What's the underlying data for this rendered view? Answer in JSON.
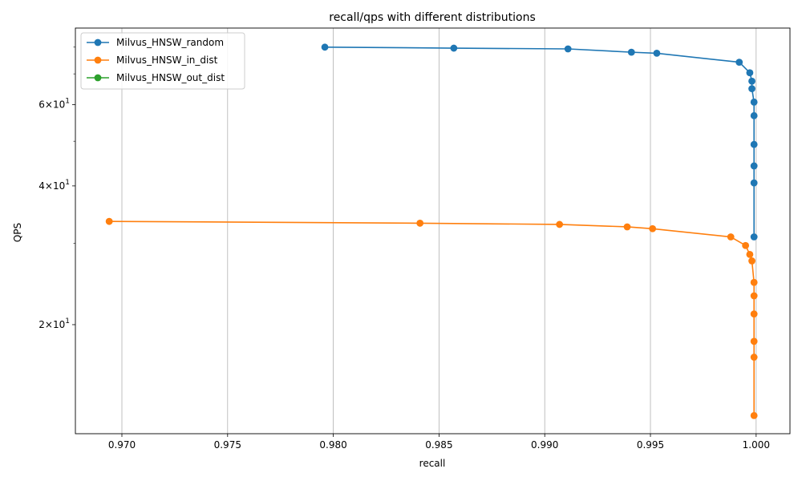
{
  "chart_data": {
    "type": "line",
    "title": "recall/qps with different distributions",
    "xlabel": "recall",
    "ylabel": "QPS",
    "xlim": [
      0.9678,
      1.0016
    ],
    "ylim": [
      11.6,
      88.0
    ],
    "yscale": "log",
    "grid": "x-only",
    "legend_position": "top-left",
    "x_ticks": [
      {
        "value": 0.97,
        "label": "0.970"
      },
      {
        "value": 0.975,
        "label": "0.975"
      },
      {
        "value": 0.98,
        "label": "0.980"
      },
      {
        "value": 0.985,
        "label": "0.985"
      },
      {
        "value": 0.99,
        "label": "0.990"
      },
      {
        "value": 0.995,
        "label": "0.995"
      },
      {
        "value": 1.0,
        "label": "1.000"
      }
    ],
    "y_ticks": [
      {
        "value": 20,
        "base": "2",
        "exp": "10",
        "power": "1"
      },
      {
        "value": 40,
        "base": "4",
        "exp": "10",
        "power": "1"
      },
      {
        "value": 60,
        "base": "6",
        "exp": "10",
        "power": "1"
      }
    ],
    "y_minor_ticks": [
      30,
      50,
      70,
      80
    ],
    "series": [
      {
        "name": "Milvus_HNSW_random",
        "color": "#1f77b4",
        "x": [
          0.9796,
          0.9857,
          0.9911,
          0.9941,
          0.9953,
          0.9992,
          0.9997,
          0.9998,
          0.9998,
          0.9999,
          0.9999,
          0.9999,
          0.9999,
          0.9999,
          0.9999
        ],
        "y": [
          80.0,
          79.6,
          79.3,
          78.0,
          77.6,
          74.2,
          70.4,
          67.5,
          65.0,
          60.8,
          56.8,
          49.2,
          44.2,
          40.6,
          31.0
        ]
      },
      {
        "name": "Milvus_HNSW_in_dist",
        "color": "#ff7f0e",
        "x": [
          0.9694,
          0.9841,
          0.9907,
          0.9939,
          0.9951,
          0.9988,
          0.9995,
          0.9997,
          0.9998,
          0.9999,
          0.9999,
          0.9999,
          0.9999,
          0.9999,
          0.9999
        ],
        "y": [
          33.5,
          33.2,
          33.0,
          32.6,
          32.3,
          31.0,
          29.7,
          28.4,
          27.5,
          24.7,
          23.1,
          21.1,
          18.4,
          17.0,
          12.7
        ]
      },
      {
        "name": "Milvus_HNSW_out_dist",
        "color": "#2ca02c",
        "x": [],
        "y": []
      }
    ]
  }
}
